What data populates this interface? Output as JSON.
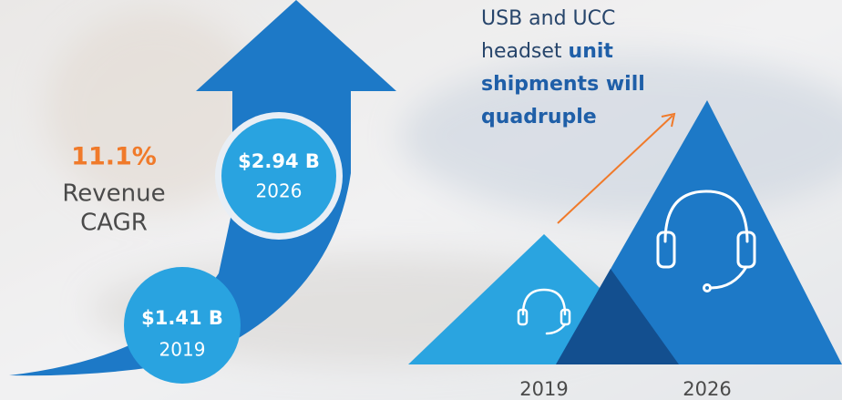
{
  "left": {
    "cagr_value": "11.1%",
    "cagr_label": [
      "Revenue",
      "CAGR"
    ],
    "circles": [
      {
        "amount": "$1.41 B",
        "year": "2019"
      },
      {
        "amount": "$2.94 B",
        "year": "2026"
      }
    ]
  },
  "right": {
    "headline": [
      [
        {
          "text": "USB and UCC",
          "bold": false
        }
      ],
      [
        {
          "text": "headset ",
          "bold": false
        },
        {
          "text": "unit",
          "bold": true
        }
      ],
      [
        {
          "text": "shipments will",
          "bold": true
        }
      ],
      [
        {
          "text": "quadruple",
          "bold": true
        }
      ]
    ],
    "years": [
      "2019",
      "2026"
    ]
  }
}
